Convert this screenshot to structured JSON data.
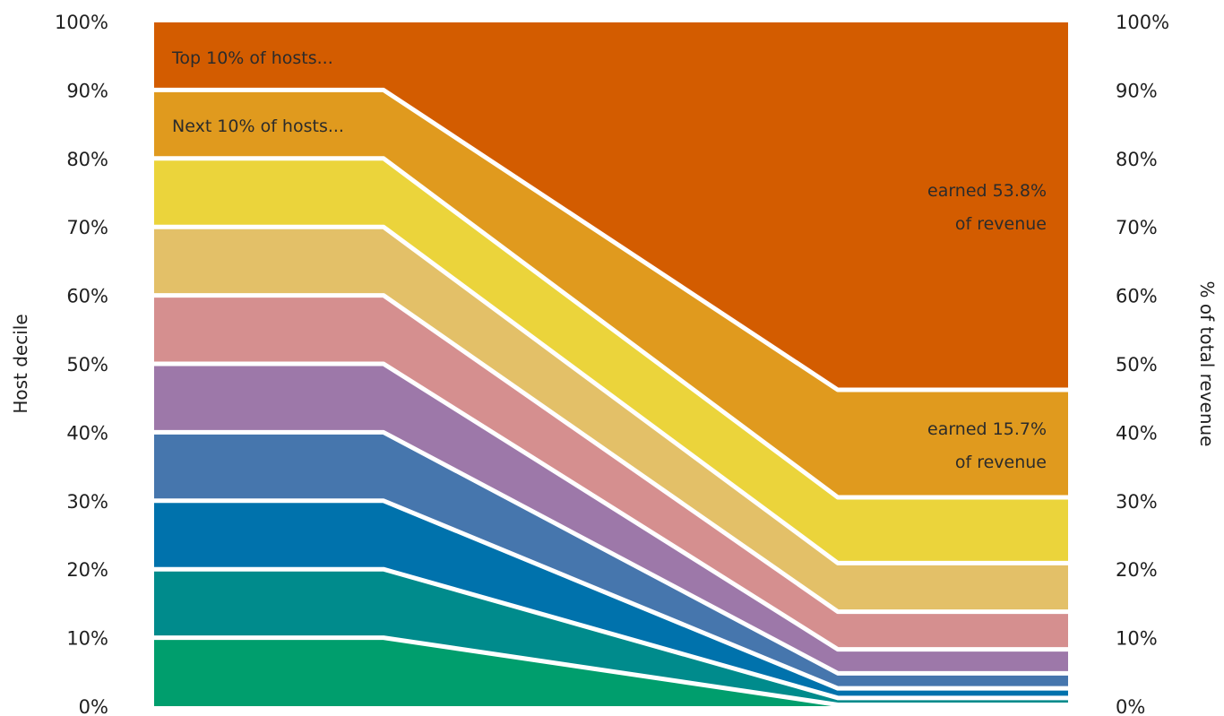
{
  "chart_data": {
    "type": "area",
    "left_axis_label": "Host decile",
    "right_axis_label": "% of total revenue",
    "y_tick_labels": [
      "0%",
      "10%",
      "20%",
      "30%",
      "40%",
      "50%",
      "60%",
      "70%",
      "80%",
      "90%",
      "100%"
    ],
    "ylim": [
      0,
      100
    ],
    "grid": false,
    "left_boundaries": [
      0,
      10,
      20,
      30,
      40,
      50,
      60,
      70,
      80,
      90,
      100
    ],
    "right_boundaries": [
      0,
      0.2,
      1.2,
      2.6,
      4.8,
      8.3,
      13.8,
      20.9,
      30.5,
      46.2,
      100
    ],
    "series": [
      {
        "left": 10,
        "right": 0.2,
        "color": "#009e6d"
      },
      {
        "left": 10,
        "right": 1.0,
        "color": "#008b8c"
      },
      {
        "left": 10,
        "right": 1.4,
        "color": "#0072ac"
      },
      {
        "left": 10,
        "right": 2.2,
        "color": "#4676ad"
      },
      {
        "left": 10,
        "right": 3.5,
        "color": "#9d78a9"
      },
      {
        "left": 10,
        "right": 5.5,
        "color": "#d58f8f"
      },
      {
        "left": 10,
        "right": 7.1,
        "color": "#e3c068"
      },
      {
        "left": 10,
        "right": 9.6,
        "color": "#ebd43b"
      },
      {
        "left": 10,
        "right": 15.7,
        "color": "#e09a1e"
      },
      {
        "left": 10,
        "right": 53.8,
        "color": "#d35c00"
      }
    ],
    "annotations": {
      "top_hosts": "Top 10% of hosts...",
      "next_hosts": "Next 10% of hosts...",
      "top_share_line1": "earned 53.8%",
      "top_share_line2": "of revenue",
      "next_share_line1": "earned 15.7%",
      "next_share_line2": "of revenue"
    }
  }
}
